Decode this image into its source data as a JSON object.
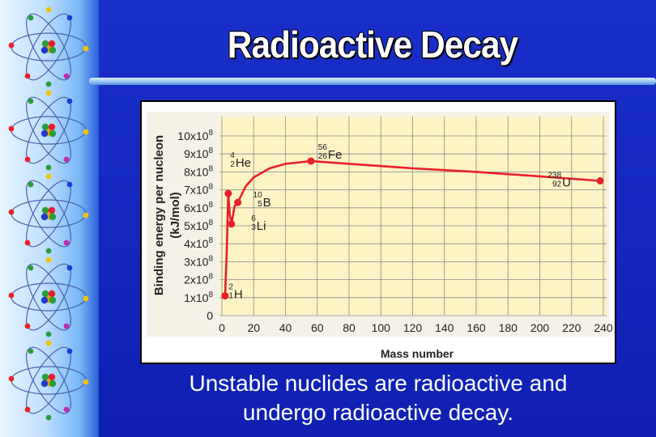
{
  "slide": {
    "title": "Radioactive Decay",
    "caption_line1": "Unstable nuclides are radioactive and",
    "caption_line2": "undergo radioactive decay."
  },
  "colors": {
    "background": "#1428c0",
    "plot_area": "#fdf3c4",
    "grid": "#8a8a8a",
    "series": "#e8202a",
    "title_text": "#ffffff"
  },
  "sidebar": {
    "icon": "atom-icon",
    "count": 5
  },
  "chart_data": {
    "type": "line",
    "title": "",
    "xlabel": "Mass number",
    "ylabel_line1": "Binding energy per nucleon",
    "ylabel_line2": "(kJ/mol)",
    "xlim": [
      0,
      240
    ],
    "ylim": [
      0,
      10
    ],
    "x_ticks": [
      "0",
      "20",
      "40",
      "60",
      "80",
      "100",
      "120",
      "140",
      "160",
      "180",
      "200",
      "220",
      "240"
    ],
    "y_tick_mantissa": [
      "0",
      "1x10",
      "2x10",
      "3x10",
      "4x10",
      "5x10",
      "6x10",
      "7x10",
      "8x10",
      "9x10",
      "10x10"
    ],
    "y_tick_exponent": "8",
    "y_unit_scale": "1e8",
    "grid": true,
    "curve": [
      {
        "x": 2,
        "y": 1.1
      },
      {
        "x": 3,
        "y": 3.4
      },
      {
        "x": 4,
        "y": 6.8
      },
      {
        "x": 5,
        "y": 5.6
      },
      {
        "x": 6,
        "y": 5.1
      },
      {
        "x": 8,
        "y": 6.1
      },
      {
        "x": 10,
        "y": 6.3
      },
      {
        "x": 15,
        "y": 7.2
      },
      {
        "x": 20,
        "y": 7.7
      },
      {
        "x": 30,
        "y": 8.2
      },
      {
        "x": 40,
        "y": 8.45
      },
      {
        "x": 56,
        "y": 8.6
      },
      {
        "x": 80,
        "y": 8.45
      },
      {
        "x": 120,
        "y": 8.2
      },
      {
        "x": 160,
        "y": 8.0
      },
      {
        "x": 200,
        "y": 7.75
      },
      {
        "x": 238,
        "y": 7.5
      }
    ],
    "points": [
      {
        "x": 2,
        "y": 1.1,
        "mass": "2",
        "atomic": "1",
        "symbol": "H"
      },
      {
        "x": 4,
        "y": 6.8,
        "mass": "4",
        "atomic": "2",
        "symbol": "He"
      },
      {
        "x": 6,
        "y": 5.1,
        "mass": "6",
        "atomic": "3",
        "symbol": "Li"
      },
      {
        "x": 10,
        "y": 6.3,
        "mass": "10",
        "atomic": "5",
        "symbol": "B"
      },
      {
        "x": 56,
        "y": 8.6,
        "mass": "56",
        "atomic": "26",
        "symbol": "Fe"
      },
      {
        "x": 238,
        "y": 7.5,
        "mass": "238",
        "atomic": "92",
        "symbol": "U"
      }
    ]
  }
}
